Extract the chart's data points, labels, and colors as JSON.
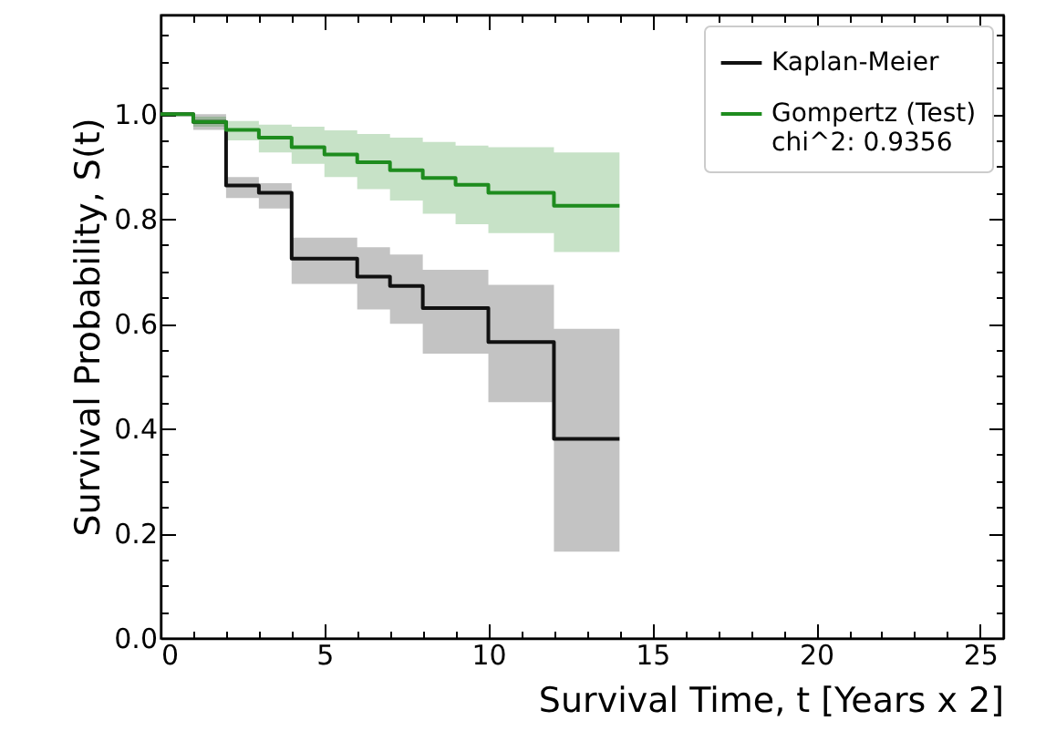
{
  "chart_data": {
    "type": "step",
    "xlabel": "Survival Time, t [Years x 2]",
    "ylabel": "Survival Probability, S(t)",
    "xlim": [
      0,
      25.7
    ],
    "ylim": [
      0,
      1.19
    ],
    "xticks": [
      0,
      {
        "value": 1,
        "label": null
      },
      {
        "value": 2,
        "label": null
      },
      {
        "value": 3,
        "label": null
      },
      {
        "value": 4,
        "label": null
      },
      5,
      {
        "value": 6,
        "label": null
      },
      {
        "value": 7,
        "label": null
      },
      {
        "value": 8,
        "label": null
      },
      {
        "value": 9,
        "label": null
      },
      10,
      {
        "value": 11,
        "label": null
      },
      {
        "value": 12,
        "label": null
      },
      {
        "value": 13,
        "label": null
      },
      {
        "value": 14,
        "label": null
      },
      15,
      {
        "value": 16,
        "label": null
      },
      {
        "value": 17,
        "label": null
      },
      {
        "value": 18,
        "label": null
      },
      {
        "value": 19,
        "label": null
      },
      20,
      {
        "value": 21,
        "label": null
      },
      {
        "value": 22,
        "label": null
      },
      {
        "value": 23,
        "label": null
      },
      {
        "value": 24,
        "label": null
      },
      25
    ],
    "yticks": [
      {
        "value": 0,
        "label": "0.0"
      },
      {
        "value": 0.05,
        "label": null
      },
      {
        "value": 0.1,
        "label": null
      },
      {
        "value": 0.15,
        "label": null
      },
      {
        "value": 0.2,
        "label": "0.2"
      },
      {
        "value": 0.25,
        "label": null
      },
      {
        "value": 0.3,
        "label": null
      },
      {
        "value": 0.35,
        "label": null
      },
      {
        "value": 0.4,
        "label": "0.4"
      },
      {
        "value": 0.45,
        "label": null
      },
      {
        "value": 0.5,
        "label": null
      },
      {
        "value": 0.55,
        "label": null
      },
      {
        "value": 0.6,
        "label": "0.6"
      },
      {
        "value": 0.65,
        "label": null
      },
      {
        "value": 0.7,
        "label": null
      },
      {
        "value": 0.75,
        "label": null
      },
      {
        "value": 0.8,
        "label": "0.8"
      },
      {
        "value": 0.85,
        "label": null
      },
      {
        "value": 0.9,
        "label": null
      },
      {
        "value": 0.95,
        "label": null
      },
      {
        "value": 1,
        "label": "1.0"
      },
      {
        "value": 1.05,
        "label": null
      },
      {
        "value": 1.1,
        "label": null
      },
      {
        "value": 1.15,
        "label": null
      }
    ],
    "legend": "top right",
    "grid": false,
    "line_style": "solid",
    "marker": "none",
    "series": [
      {
        "name": "Kaplan-Meier",
        "color": "#111111",
        "x": [
          0,
          1,
          2,
          3,
          4,
          6,
          7,
          8,
          10,
          12,
          14
        ],
        "values": [
          1.0,
          0.985,
          0.864,
          0.85,
          0.724,
          0.69,
          0.672,
          0.63,
          0.565,
          0.38,
          0.38
        ],
        "lower": [
          1.0,
          0.97,
          0.84,
          0.82,
          0.676,
          0.627,
          0.6,
          0.543,
          0.45,
          0.165,
          0.165
        ],
        "upper": [
          1.0,
          1.0,
          0.88,
          0.868,
          0.764,
          0.746,
          0.732,
          0.703,
          0.674,
          0.59,
          0.59
        ]
      },
      {
        "name": "Gompertz (Test)\n chi^2: 0.9356",
        "color": "#1e8c1e",
        "x": [
          0,
          1,
          2,
          3,
          4,
          5,
          6,
          7,
          8,
          9,
          10,
          12,
          14
        ],
        "values": [
          1.0,
          0.985,
          0.97,
          0.955,
          0.937,
          0.923,
          0.908,
          0.893,
          0.878,
          0.865,
          0.85,
          0.825,
          0.825
        ],
        "lower": [
          1.0,
          0.976,
          0.95,
          0.927,
          0.905,
          0.88,
          0.857,
          0.835,
          0.81,
          0.79,
          0.773,
          0.737,
          0.737
        ],
        "upper": [
          1.0,
          0.995,
          0.987,
          0.98,
          0.976,
          0.969,
          0.962,
          0.955,
          0.947,
          0.94,
          0.937,
          0.927,
          0.927
        ]
      }
    ]
  }
}
